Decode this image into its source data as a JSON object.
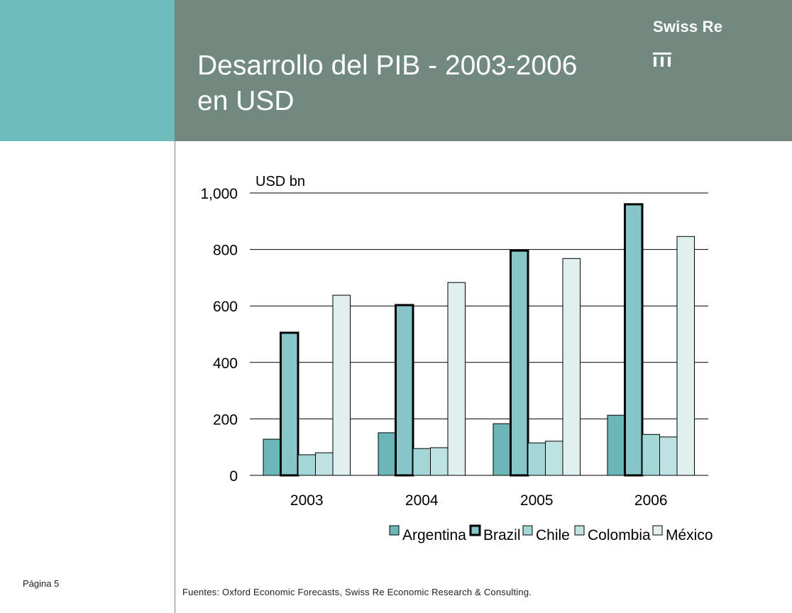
{
  "header": {
    "title_line1": "Desarrollo del PIB - 2003-2006",
    "title_line2": "en USD",
    "brand": "Swiss Re"
  },
  "footer": {
    "page_label": "Página 5",
    "source": "Fuentes: Oxford Economic Forecasts, Swiss Re Economic Research & Consulting."
  },
  "chart_data": {
    "type": "bar",
    "title": "",
    "ylabel": "USD bn",
    "xlabel": "",
    "ylim": [
      0,
      1000
    ],
    "yticks": [
      0,
      200,
      400,
      600,
      800,
      1000
    ],
    "ytick_labels": [
      "0",
      "200",
      "400",
      "600",
      "800",
      "1,000"
    ],
    "categories": [
      "2003",
      "2004",
      "2005",
      "2006"
    ],
    "grid": "horizontal",
    "legend_position": "bottom-right",
    "series": [
      {
        "name": "Argentina",
        "values": [
          128,
          151,
          183,
          213
        ],
        "color": "#6bb6b9",
        "highlight": false
      },
      {
        "name": "Brazil",
        "values": [
          505,
          603,
          796,
          960
        ],
        "color": "#86c6c8",
        "highlight": true
      },
      {
        "name": "Chile",
        "values": [
          73,
          95,
          115,
          145
        ],
        "color": "#a3d6d6",
        "highlight": false
      },
      {
        "name": "Colombia",
        "values": [
          80,
          98,
          121,
          136
        ],
        "color": "#bde2e1",
        "highlight": false
      },
      {
        "name": "México",
        "values": [
          638,
          683,
          768,
          846
        ],
        "color": "#dff0ef",
        "highlight": false
      }
    ]
  }
}
